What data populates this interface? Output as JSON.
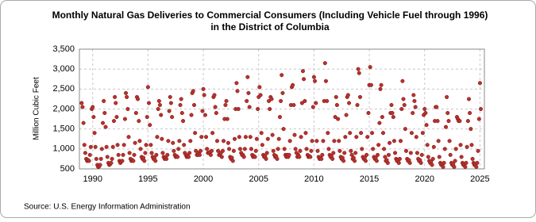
{
  "chart_data": {
    "type": "scatter",
    "title": [
      "Monthly Natural Gas Deliveries to Commercial Consumers (Including Vehicle Fuel through 1996)",
      "in the District of Columbia"
    ],
    "y_label": "Million Cubic Feet",
    "source": "Source: U.S. Energy Information Administration",
    "color": "#b8312f",
    "grid": true,
    "xlim": [
      1988.8,
      2025.4
    ],
    "xticks": [
      1990,
      1995,
      2000,
      2005,
      2010,
      2015,
      2020,
      2025
    ],
    "ylim": [
      500,
      3500
    ],
    "yticks": [
      500,
      {
        "value": 1000,
        "label": "1,000"
      },
      {
        "value": 1500,
        "label": "1,500"
      },
      {
        "value": 2000,
        "label": "2,000"
      },
      {
        "value": 2500,
        "label": "2,500"
      },
      {
        "value": 3000,
        "label": "3,000"
      },
      {
        "value": 3500,
        "label": "3,500"
      }
    ],
    "x": [
      1989,
      1989.08,
      1989.17,
      1989.25,
      1989.33,
      1989.42,
      1989.5,
      1989.58,
      1989.67,
      1989.75,
      1989.83,
      1989.92,
      1990,
      1990.08,
      1990.17,
      1990.25,
      1990.33,
      1990.42,
      1990.5,
      1990.58,
      1990.67,
      1990.75,
      1990.83,
      1990.92,
      1991,
      1991.08,
      1991.17,
      1991.25,
      1991.33,
      1991.42,
      1991.5,
      1991.58,
      1991.67,
      1991.75,
      1991.83,
      1991.92,
      1992,
      1992.08,
      1992.17,
      1992.25,
      1992.33,
      1992.42,
      1992.5,
      1992.58,
      1992.67,
      1992.75,
      1992.83,
      1992.92,
      1993,
      1993.08,
      1993.17,
      1993.25,
      1993.33,
      1993.42,
      1993.5,
      1993.58,
      1993.67,
      1993.75,
      1993.83,
      1993.92,
      1994,
      1994.08,
      1994.17,
      1994.25,
      1994.33,
      1994.42,
      1994.5,
      1994.58,
      1994.67,
      1994.75,
      1994.83,
      1994.92,
      1995,
      1995.08,
      1995.17,
      1995.25,
      1995.33,
      1995.42,
      1995.5,
      1995.58,
      1995.67,
      1995.75,
      1995.83,
      1995.92,
      1996,
      1996.08,
      1996.17,
      1996.25,
      1996.33,
      1996.42,
      1996.5,
      1996.58,
      1996.67,
      1996.75,
      1996.83,
      1996.92,
      1997,
      1997.08,
      1997.17,
      1997.25,
      1997.33,
      1997.42,
      1997.5,
      1997.58,
      1997.67,
      1997.75,
      1997.83,
      1997.92,
      1998,
      1998.08,
      1998.17,
      1998.25,
      1998.33,
      1998.42,
      1998.5,
      1998.58,
      1998.67,
      1998.75,
      1998.83,
      1998.92,
      1999,
      1999.08,
      1999.17,
      1999.25,
      1999.33,
      1999.42,
      1999.5,
      1999.58,
      1999.67,
      1999.75,
      1999.83,
      1999.92,
      2000,
      2000.08,
      2000.17,
      2000.25,
      2000.33,
      2000.42,
      2000.5,
      2000.58,
      2000.67,
      2000.75,
      2000.83,
      2000.92,
      2001,
      2001.08,
      2001.17,
      2001.25,
      2001.33,
      2001.42,
      2001.5,
      2001.58,
      2001.67,
      2001.75,
      2001.83,
      2001.92,
      2002,
      2002.08,
      2002.17,
      2002.25,
      2002.33,
      2002.42,
      2002.5,
      2002.58,
      2002.67,
      2002.75,
      2002.83,
      2002.92,
      2003,
      2003.08,
      2003.17,
      2003.25,
      2003.33,
      2003.42,
      2003.5,
      2003.58,
      2003.67,
      2003.75,
      2003.83,
      2003.92,
      2004,
      2004.08,
      2004.17,
      2004.25,
      2004.33,
      2004.42,
      2004.5,
      2004.58,
      2004.67,
      2004.75,
      2004.83,
      2004.92,
      2005,
      2005.08,
      2005.17,
      2005.25,
      2005.33,
      2005.42,
      2005.5,
      2005.58,
      2005.67,
      2005.75,
      2005.83,
      2005.92,
      2006,
      2006.08,
      2006.17,
      2006.25,
      2006.33,
      2006.42,
      2006.5,
      2006.58,
      2006.67,
      2006.75,
      2006.83,
      2006.92,
      2007,
      2007.08,
      2007.17,
      2007.25,
      2007.33,
      2007.42,
      2007.5,
      2007.58,
      2007.67,
      2007.75,
      2007.83,
      2007.92,
      2008,
      2008.08,
      2008.17,
      2008.25,
      2008.33,
      2008.42,
      2008.5,
      2008.58,
      2008.67,
      2008.75,
      2008.83,
      2008.92,
      2009,
      2009.08,
      2009.17,
      2009.25,
      2009.33,
      2009.42,
      2009.5,
      2009.58,
      2009.67,
      2009.75,
      2009.83,
      2009.92,
      2010,
      2010.08,
      2010.17,
      2010.25,
      2010.33,
      2010.42,
      2010.5,
      2010.58,
      2010.67,
      2010.75,
      2010.83,
      2010.92,
      2011,
      2011.08,
      2011.17,
      2011.25,
      2011.33,
      2011.42,
      2011.5,
      2011.58,
      2011.67,
      2011.75,
      2011.83,
      2011.92,
      2012,
      2012.08,
      2012.17,
      2012.25,
      2012.33,
      2012.42,
      2012.5,
      2012.58,
      2012.67,
      2012.75,
      2012.83,
      2012.92,
      2013,
      2013.08,
      2013.17,
      2013.25,
      2013.33,
      2013.42,
      2013.5,
      2013.58,
      2013.67,
      2013.75,
      2013.83,
      2013.92,
      2014,
      2014.08,
      2014.17,
      2014.25,
      2014.33,
      2014.42,
      2014.5,
      2014.58,
      2014.67,
      2014.75,
      2014.83,
      2014.92,
      2015,
      2015.08,
      2015.17,
      2015.25,
      2015.33,
      2015.42,
      2015.5,
      2015.58,
      2015.67,
      2015.75,
      2015.83,
      2015.92,
      2016,
      2016.08,
      2016.17,
      2016.25,
      2016.33,
      2016.42,
      2016.5,
      2016.58,
      2016.67,
      2016.75,
      2016.83,
      2016.92,
      2017,
      2017.08,
      2017.17,
      2017.25,
      2017.33,
      2017.42,
      2017.5,
      2017.58,
      2017.67,
      2017.75,
      2017.83,
      2017.92,
      2018,
      2018.08,
      2018.17,
      2018.25,
      2018.33,
      2018.42,
      2018.5,
      2018.58,
      2018.67,
      2018.75,
      2018.83,
      2018.92,
      2019,
      2019.08,
      2019.17,
      2019.25,
      2019.33,
      2019.42,
      2019.5,
      2019.58,
      2019.67,
      2019.75,
      2019.83,
      2019.92,
      2020,
      2020.08,
      2020.17,
      2020.25,
      2020.33,
      2020.42,
      2020.5,
      2020.58,
      2020.67,
      2020.75,
      2020.83,
      2020.92,
      2021,
      2021.08,
      2021.17,
      2021.25,
      2021.33,
      2021.42,
      2021.5,
      2021.58,
      2021.67,
      2021.75,
      2021.83,
      2021.92,
      2022,
      2022.08,
      2022.17,
      2022.25,
      2022.33,
      2022.42,
      2022.5,
      2022.58,
      2022.67,
      2022.75,
      2022.83,
      2022.92,
      2023,
      2023.08,
      2023.17,
      2023.25,
      2023.33,
      2023.42,
      2023.5,
      2023.58,
      2023.67,
      2023.75,
      2023.83,
      2023.92,
      2024,
      2024.08,
      2024.17,
      2024.25,
      2024.33,
      2024.42,
      2024.5,
      2024.58,
      2024.67,
      2024.75,
      2024.83,
      2024.92,
      2025,
      2025.08
    ],
    "values": [
      2150,
      2050,
      1650,
      1100,
      900,
      750,
      700,
      720,
      700,
      850,
      1050,
      2000,
      2050,
      1800,
      1400,
      1050,
      750,
      600,
      550,
      560,
      600,
      750,
      1000,
      1650,
      2200,
      1900,
      1550,
      1050,
      800,
      650,
      600,
      620,
      650,
      750,
      1050,
      1700,
      2300,
      2150,
      1800,
      1100,
      850,
      700,
      650,
      680,
      700,
      850,
      1100,
      1750,
      2400,
      2300,
      2000,
      1300,
      900,
      750,
      700,
      720,
      700,
      850,
      1150,
      1900,
      2300,
      2250,
      1700,
      1200,
      1000,
      800,
      750,
      780,
      700,
      900,
      1100,
      1800,
      2550,
      2150,
      1600,
      1100,
      900,
      800,
      750,
      780,
      700,
      850,
      1300,
      2000,
      2200,
      2100,
      1850,
      1250,
      900,
      800,
      750,
      780,
      750,
      850,
      1200,
      1950,
      2300,
      2150,
      1800,
      1150,
      950,
      850,
      800,
      820,
      800,
      1000,
      1200,
      2100,
      2250,
      1900,
      1700,
      1100,
      900,
      850,
      800,
      820,
      800,
      900,
      1200,
      1850,
      2400,
      2450,
      2100,
      1400,
      950,
      850,
      850,
      900,
      850,
      950,
      1300,
      1950,
      2500,
      2350,
      1850,
      1300,
      1000,
      900,
      900,
      920,
      850,
      950,
      1400,
      2300,
      2350,
      2050,
      1900,
      1200,
      950,
      850,
      850,
      900,
      800,
      950,
      1200,
      1750,
      2100,
      2200,
      1750,
      1150,
      1000,
      800,
      750,
      780,
      700,
      950,
      1250,
      2000,
      2650,
      2450,
      2000,
      1300,
      1000,
      900,
      850,
      850,
      800,
      1000,
      1300,
      2200,
      2800,
      2400,
      2050,
      1300,
      1000,
      850,
      800,
      820,
      800,
      950,
      1250,
      2000,
      2300,
      2550,
      2350,
      1400,
      1100,
      850,
      800,
      820,
      750,
      900,
      1250,
      2200,
      2000,
      2300,
      2250,
      1350,
      950,
      850,
      800,
      820,
      750,
      1000,
      1250,
      1800,
      2200,
      2850,
      2400,
      1500,
      1000,
      850,
      800,
      850,
      800,
      850,
      1200,
      2100,
      2550,
      2600,
      2100,
      1350,
      1000,
      900,
      800,
      850,
      800,
      950,
      1300,
      2150,
      2950,
      2750,
      2200,
      1400,
      1000,
      850,
      800,
      820,
      800,
      950,
      1200,
      2050,
      2800,
      2700,
      2150,
      1200,
      950,
      800,
      750,
      780,
      750,
      850,
      1200,
      2200,
      3150,
      2700,
      2200,
      1400,
      1000,
      850,
      800,
      820,
      750,
      900,
      1200,
      1800,
      2300,
      2100,
      1750,
      1200,
      950,
      800,
      750,
      780,
      700,
      900,
      1300,
      1850,
      2300,
      2350,
      2150,
      1400,
      950,
      850,
      750,
      780,
      700,
      900,
      1300,
      2100,
      3000,
      2900,
      2300,
      1400,
      1000,
      800,
      750,
      780,
      700,
      850,
      1300,
      1900,
      2600,
      3050,
      2600,
      1400,
      1000,
      800,
      750,
      780,
      700,
      850,
      1100,
      1650,
      2500,
      2600,
      1800,
      1400,
      1000,
      800,
      700,
      720,
      650,
      850,
      1150,
      1900,
      2100,
      1900,
      1800,
      1200,
      900,
      750,
      700,
      720,
      650,
      750,
      1200,
      2000,
      2700,
      2250,
      2100,
      1500,
      950,
      750,
      700,
      720,
      650,
      900,
      1400,
      1900,
      2350,
      2200,
      2050,
      1300,
      900,
      750,
      700,
      720,
      650,
      850,
      1400,
      1850,
      2000,
      1900,
      1600,
      1100,
      800,
      700,
      650,
      680,
      600,
      750,
      1050,
      1700,
      2050,
      2050,
      1700,
      1200,
      800,
      650,
      600,
      620,
      550,
      650,
      1000,
      1550,
      2300,
      1900,
      1700,
      1200,
      850,
      650,
      600,
      620,
      550,
      700,
      1000,
      1800,
      1750,
      1700,
      1700,
      1100,
      800,
      650,
      600,
      620,
      550,
      650,
      1050,
      1700,
      2250,
      1900,
      1500,
      1100,
      750,
      650,
      600,
      620,
      550,
      650,
      950,
      1750,
      2650,
      2000
    ]
  }
}
